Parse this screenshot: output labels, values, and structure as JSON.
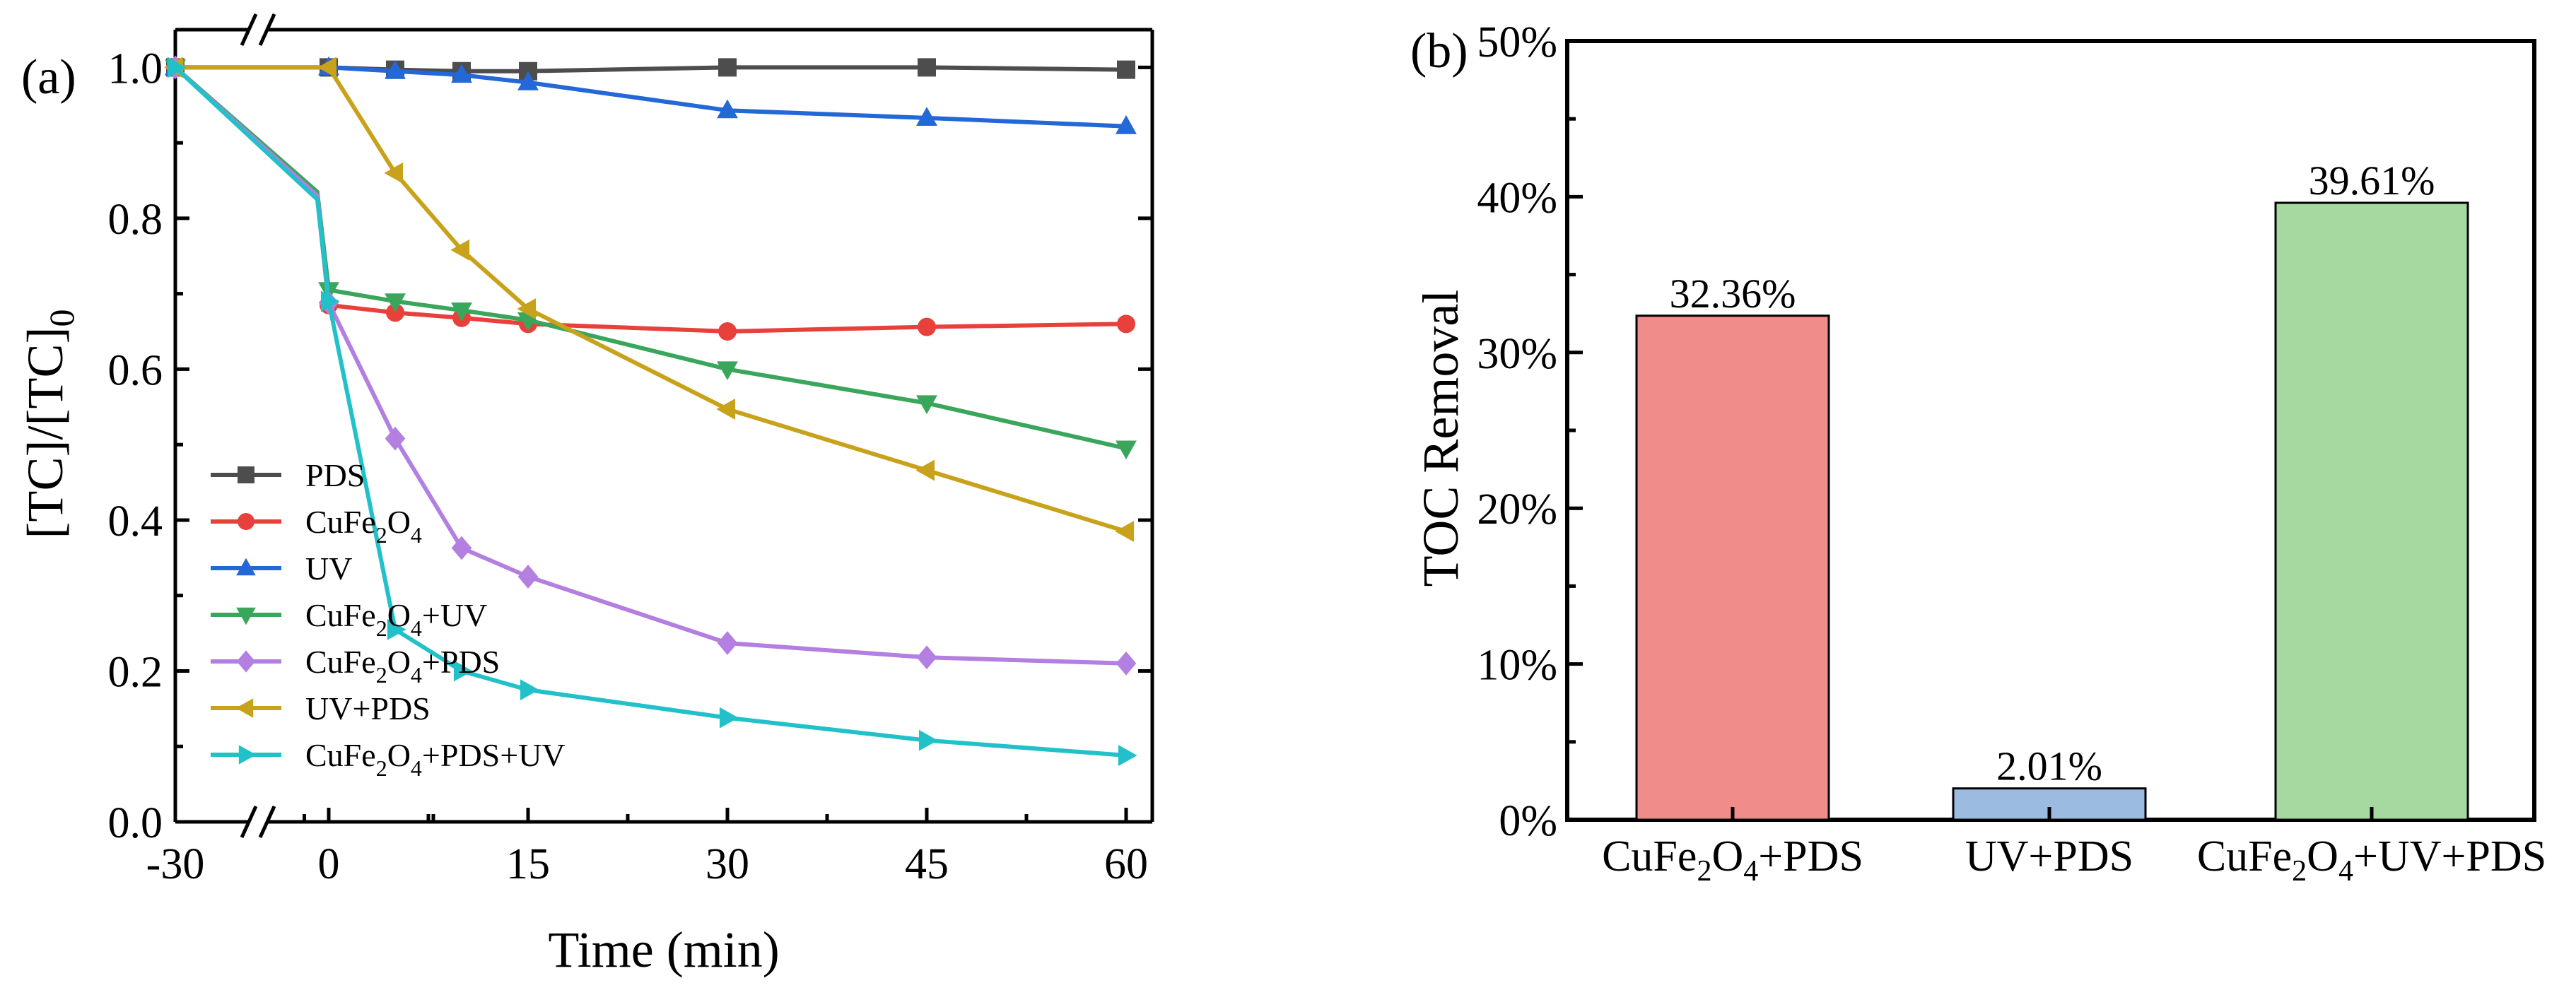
{
  "chart_data": [
    {
      "type": "line",
      "panel_label": "(a)",
      "xlabel": "Time (min)",
      "ylabel_main": "[TC]/[TC]",
      "ylabel_sub": "0",
      "ylim": [
        0,
        1.05
      ],
      "x_ticks": [
        -30,
        0,
        15,
        30,
        45,
        60
      ],
      "x_tick_labels": [
        "-30",
        "0",
        "15",
        "30",
        "45",
        "60"
      ],
      "y_ticks": [
        0,
        0.2,
        0.4,
        0.6,
        0.8,
        1.0
      ],
      "y_tick_labels": [
        "0.0",
        "0.2",
        "0.4",
        "0.6",
        "0.8",
        "1.0"
      ],
      "axis_break": "between -30 and 0",
      "series": [
        {
          "name": "PDS",
          "legend": [
            [
              "PDS",
              ""
            ]
          ],
          "color": "#4d4d4d",
          "marker": "square",
          "x": [
            -30,
            0,
            5,
            10,
            15,
            30,
            45,
            60
          ],
          "y": [
            1.0,
            1.0,
            0.997,
            0.995,
            0.995,
            1.0,
            1.0,
            0.997
          ]
        },
        {
          "name": "CuFe2O4",
          "legend": [
            [
              "CuFe",
              ""
            ],
            [
              "2",
              "sub"
            ],
            [
              "O",
              ""
            ],
            [
              "4",
              "sub"
            ]
          ],
          "color": "#e8413c",
          "marker": "circle",
          "x": [
            -30,
            -19,
            0,
            5,
            10,
            15,
            30,
            45,
            60
          ],
          "y": [
            1.0,
            0.83,
            0.685,
            0.675,
            0.668,
            0.66,
            0.65,
            0.656,
            0.66
          ]
        },
        {
          "name": "UV",
          "legend": [
            [
              "UV",
              ""
            ]
          ],
          "color": "#2468d8",
          "marker": "triangle-up",
          "x": [
            -30,
            0,
            5,
            10,
            15,
            30,
            45,
            60
          ],
          "y": [
            1.0,
            1.0,
            0.995,
            0.99,
            0.98,
            0.943,
            0.933,
            0.922
          ]
        },
        {
          "name": "CuFe2O4+UV",
          "legend": [
            [
              "CuFe",
              ""
            ],
            [
              "2",
              "sub"
            ],
            [
              "O",
              ""
            ],
            [
              "4",
              "sub"
            ],
            [
              "+UV",
              ""
            ]
          ],
          "color": "#3aa65c",
          "marker": "triangle-down",
          "x": [
            -30,
            -19,
            0,
            5,
            10,
            15,
            30,
            45,
            60
          ],
          "y": [
            1.0,
            0.835,
            0.705,
            0.69,
            0.678,
            0.665,
            0.6,
            0.555,
            0.495
          ]
        },
        {
          "name": "CuFe2O4+PDS",
          "legend": [
            [
              "CuFe",
              ""
            ],
            [
              "2",
              "sub"
            ],
            [
              "O",
              ""
            ],
            [
              "4",
              "sub"
            ],
            [
              "+PDS",
              ""
            ]
          ],
          "color": "#b37fe0",
          "marker": "diamond",
          "x": [
            -30,
            -19,
            0,
            5,
            10,
            15,
            30,
            45,
            60
          ],
          "y": [
            1.0,
            0.83,
            0.688,
            0.508,
            0.363,
            0.325,
            0.237,
            0.218,
            0.21
          ]
        },
        {
          "name": "UV+PDS",
          "legend": [
            [
              "UV+PDS",
              ""
            ]
          ],
          "color": "#c9a21b",
          "marker": "triangle-left",
          "x": [
            -30,
            0,
            5,
            10,
            15,
            30,
            45,
            60
          ],
          "y": [
            1.0,
            1.0,
            0.86,
            0.758,
            0.68,
            0.547,
            0.466,
            0.385
          ]
        },
        {
          "name": "CuFe2O4+PDS+UV",
          "legend": [
            [
              "CuFe",
              ""
            ],
            [
              "2",
              "sub"
            ],
            [
              "O",
              ""
            ],
            [
              "4",
              "sub"
            ],
            [
              "+PDS+UV",
              ""
            ]
          ],
          "color": "#22c1c9",
          "marker": "triangle-right",
          "x": [
            -30,
            -19,
            0,
            5,
            10,
            15,
            30,
            45,
            60
          ],
          "y": [
            1.0,
            0.825,
            0.69,
            0.255,
            0.2,
            0.175,
            0.138,
            0.108,
            0.088
          ]
        }
      ]
    },
    {
      "type": "bar",
      "panel_label": "(b)",
      "ylabel": "TOC Removal",
      "xlabel": "",
      "ylim": [
        0,
        50
      ],
      "y_ticks": [
        0,
        10,
        20,
        30,
        40,
        50
      ],
      "y_tick_labels": [
        "0%",
        "10%",
        "20%",
        "30%",
        "40%",
        "50%"
      ],
      "categories": [
        "CuFe2O4+PDS",
        "UV+PDS",
        "CuFe2O4+UV+PDS"
      ],
      "category_labels": [
        [
          [
            "CuFe",
            ""
          ],
          [
            "2",
            "sub"
          ],
          [
            "O",
            ""
          ],
          [
            "4",
            "sub"
          ],
          [
            "+PDS",
            ""
          ]
        ],
        [
          [
            "UV+PDS",
            ""
          ]
        ],
        [
          [
            "CuFe",
            ""
          ],
          [
            "2",
            "sub"
          ],
          [
            "O",
            ""
          ],
          [
            "4",
            "sub"
          ],
          [
            "+UV+PDS",
            ""
          ]
        ]
      ],
      "values": [
        32.36,
        2.01,
        39.61
      ],
      "value_labels": [
        "32.36%",
        "2.01%",
        "39.61%"
      ],
      "colors": [
        "#f08c8a",
        "#9bbce0",
        "#a6d9a0"
      ]
    }
  ]
}
